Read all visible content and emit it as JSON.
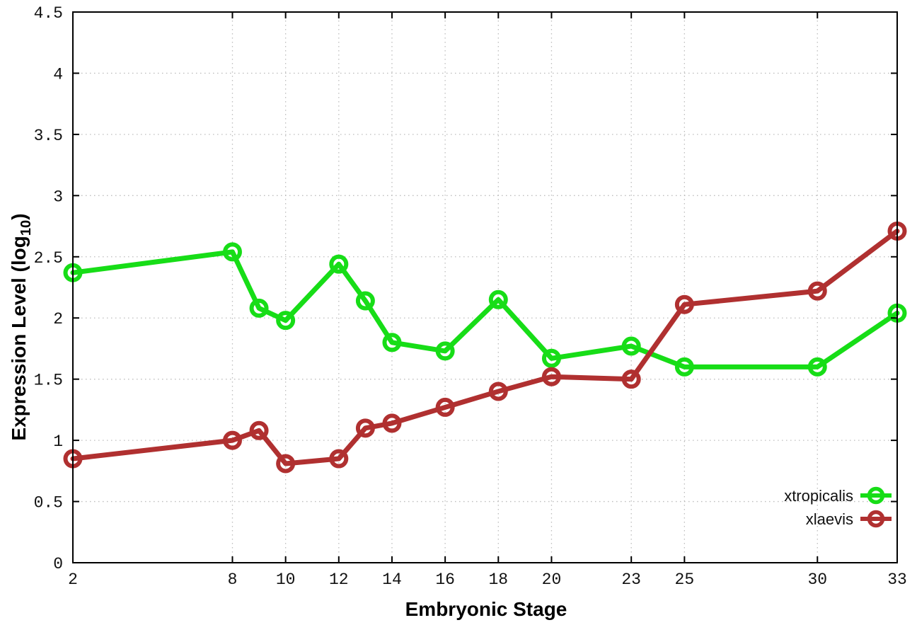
{
  "chart_data": {
    "type": "line",
    "title": "",
    "xlabel": "Embryonic Stage",
    "ylabel_prefix": "Expression Level (log",
    "ylabel_sub": "10",
    "ylabel_suffix": ")",
    "x": [
      2,
      8,
      9,
      10,
      12,
      13,
      14,
      16,
      18,
      20,
      23,
      25,
      30,
      33
    ],
    "series": [
      {
        "name": "xtropicalis",
        "color": "#17dd17",
        "values": [
          2.37,
          2.54,
          2.08,
          1.98,
          2.44,
          2.14,
          1.8,
          1.73,
          2.15,
          1.67,
          1.77,
          1.6,
          1.6,
          2.04
        ]
      },
      {
        "name": "xlaevis",
        "color": "#b03030",
        "values": [
          0.85,
          1.0,
          1.08,
          0.81,
          0.85,
          1.1,
          1.14,
          1.27,
          1.4,
          1.52,
          1.5,
          2.11,
          2.22,
          2.71
        ]
      }
    ],
    "xlim": [
      2,
      33
    ],
    "ylim": [
      0,
      4.5
    ],
    "xtick_values": [
      2,
      8,
      10,
      12,
      14,
      16,
      18,
      20,
      23,
      25,
      30,
      33
    ],
    "xtick_labels": [
      "2",
      "8",
      "10",
      "12",
      "14",
      "16",
      "18",
      "20",
      "23",
      "25",
      "30",
      "33"
    ],
    "ytick_values": [
      0,
      0.5,
      1,
      1.5,
      2,
      2.5,
      3,
      3.5,
      4,
      4.5
    ],
    "ytick_labels": [
      "0",
      "0.5",
      "1",
      "1.5",
      "2",
      "2.5",
      "3",
      "3.5",
      "4",
      "4.5"
    ],
    "grid": true,
    "legend_position": "inside-bottom-right",
    "colors": {
      "grid": "#bdbdbd",
      "axis": "#000000",
      "background": "#ffffff"
    }
  }
}
